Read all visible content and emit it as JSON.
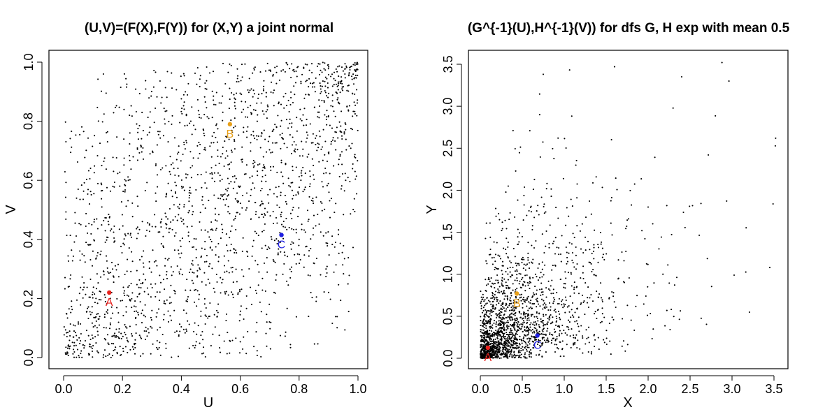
{
  "chart_data": [
    {
      "type": "scatter",
      "title": "(U,V)=(F(X),F(Y)) for (X,Y) a joint normal",
      "xlabel": "U",
      "ylabel": "V",
      "xlim": [
        0,
        1
      ],
      "ylim": [
        0,
        1
      ],
      "xticks": [
        "0.0",
        "0.2",
        "0.4",
        "0.6",
        "0.8",
        "1.0"
      ],
      "yticks": [
        "0.0",
        "0.2",
        "0.4",
        "0.6",
        "0.8",
        "1.0"
      ],
      "grid": false,
      "cloud": {
        "n": 2000,
        "correlation": 0.5,
        "marginal": "uniform",
        "color": "#000000",
        "sample_points": [
          [
            0.02,
            0.03
          ],
          [
            0.05,
            0.12
          ],
          [
            0.1,
            0.04
          ],
          [
            0.15,
            0.29
          ],
          [
            0.22,
            0.6
          ],
          [
            0.35,
            0.45
          ],
          [
            0.48,
            0.71
          ],
          [
            0.6,
            0.58
          ],
          [
            0.73,
            0.86
          ],
          [
            0.85,
            0.93
          ],
          [
            0.95,
            0.97
          ],
          [
            0.99,
            0.99
          ],
          [
            0.3,
            0.1
          ],
          [
            0.8,
            0.4
          ]
        ]
      },
      "labeled_points": [
        {
          "label": "A",
          "x": 0.155,
          "y": 0.22,
          "color": "#e8211d"
        },
        {
          "label": "B",
          "x": 0.565,
          "y": 0.79,
          "color": "#e8a019"
        },
        {
          "label": "C",
          "x": 0.74,
          "y": 0.415,
          "color": "#1f1fe0"
        }
      ]
    },
    {
      "type": "scatter",
      "title": "(G^{-1}(U),H^{-1}(V)) for dfs G, H exp with mean 0.5",
      "xlabel": "X",
      "ylabel": "Y",
      "xlim": [
        0,
        3.5
      ],
      "ylim": [
        0,
        3.5
      ],
      "xticks": [
        "0.0",
        "0.5",
        "1.0",
        "1.5",
        "2.0",
        "2.5",
        "3.0",
        "3.5"
      ],
      "yticks": [
        "0.0",
        "0.5",
        "1.0",
        "1.5",
        "2.0",
        "2.5",
        "3.0",
        "3.5"
      ],
      "grid": false,
      "cloud": {
        "n": 2000,
        "correlation": 0.5,
        "marginal": "exponential",
        "mean": 0.5,
        "color": "#000000",
        "sample_points": [
          [
            0.02,
            0.02
          ],
          [
            0.1,
            0.05
          ],
          [
            0.25,
            0.4
          ],
          [
            0.4,
            0.2
          ],
          [
            0.6,
            0.9
          ],
          [
            0.9,
            0.55
          ],
          [
            1.2,
            1.3
          ],
          [
            1.6,
            3.47
          ],
          [
            2.4,
            3.35
          ],
          [
            2.88,
            3.52
          ],
          [
            3.52,
            2.62
          ],
          [
            3.45,
            1.08
          ],
          [
            2.0,
            1.8
          ],
          [
            0.75,
            3.38
          ]
        ]
      },
      "labeled_points": [
        {
          "label": "A",
          "x": 0.09,
          "y": 0.125,
          "color": "#e8211d"
        },
        {
          "label": "B",
          "x": 0.435,
          "y": 0.77,
          "color": "#e8a019"
        },
        {
          "label": "C",
          "x": 0.68,
          "y": 0.27,
          "color": "#1f1fe0"
        }
      ]
    }
  ]
}
